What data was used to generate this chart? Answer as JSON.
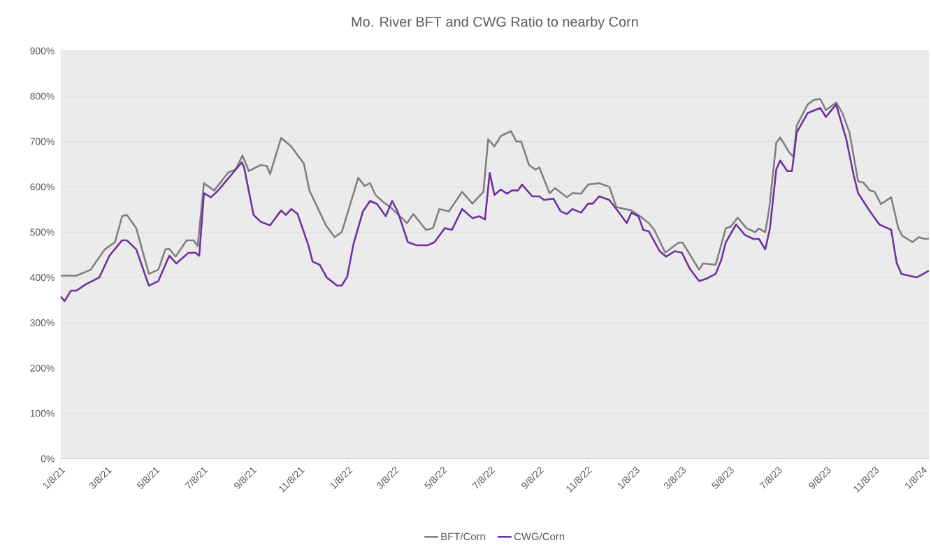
{
  "chart_data": {
    "type": "line",
    "title": "Mo. River BFT and CWG Ratio to nearby Corn",
    "xlim": [
      "2021-01-08",
      "2024-01-16"
    ],
    "ylim": [
      0,
      900
    ],
    "xticks": [
      {
        "value": "2021-01-08",
        "label": "1/8/21"
      },
      {
        "value": "2021-03-08",
        "label": "3/8/21"
      },
      {
        "value": "2021-05-08",
        "label": "5/8/21"
      },
      {
        "value": "2021-07-08",
        "label": "7/8/21"
      },
      {
        "value": "2021-09-08",
        "label": "9/8/21"
      },
      {
        "value": "2021-11-08",
        "label": "11/8/21"
      },
      {
        "value": "2022-01-08",
        "label": "1/8/22"
      },
      {
        "value": "2022-03-08",
        "label": "3/8/22"
      },
      {
        "value": "2022-05-08",
        "label": "5/8/22"
      },
      {
        "value": "2022-07-08",
        "label": "7/8/22"
      },
      {
        "value": "2022-09-08",
        "label": "9/8/22"
      },
      {
        "value": "2022-11-08",
        "label": "11/8/22"
      },
      {
        "value": "2023-01-08",
        "label": "1/8/23"
      },
      {
        "value": "2023-03-08",
        "label": "3/8/23"
      },
      {
        "value": "2023-05-08",
        "label": "5/8/23"
      },
      {
        "value": "2023-07-08",
        "label": "7/8/23"
      },
      {
        "value": "2023-09-08",
        "label": "9/8/23"
      },
      {
        "value": "2023-11-08",
        "label": "11/8/23"
      },
      {
        "value": "2024-01-08",
        "label": "1/8/24"
      }
    ],
    "yticks": [
      {
        "value": 0,
        "label": "0%"
      },
      {
        "value": 100,
        "label": "100%"
      },
      {
        "value": 200,
        "label": "200%"
      },
      {
        "value": 300,
        "label": "300%"
      },
      {
        "value": 400,
        "label": "400%"
      },
      {
        "value": 500,
        "label": "500%"
      },
      {
        "value": 600,
        "label": "600%"
      },
      {
        "value": 700,
        "label": "700%"
      },
      {
        "value": 800,
        "label": "800%"
      },
      {
        "value": 900,
        "label": "900%"
      }
    ],
    "grid": "y",
    "legend": "bottom",
    "series": [
      {
        "name": "BFT/Corn",
        "color": "#808080",
        "x": [
          "2021-01-08",
          "2021-01-28",
          "2021-02-15",
          "2021-03-05",
          "2021-03-18",
          "2021-03-27",
          "2021-04-02",
          "2021-04-14",
          "2021-04-30",
          "2021-05-12",
          "2021-05-21",
          "2021-05-26",
          "2021-06-03",
          "2021-06-17",
          "2021-06-26",
          "2021-07-01",
          "2021-07-09",
          "2021-07-22",
          "2021-08-09",
          "2021-08-18",
          "2021-08-27",
          "2021-09-04",
          "2021-09-19",
          "2021-09-27",
          "2021-10-01",
          "2021-10-15",
          "2021-10-28",
          "2021-11-13",
          "2021-11-20",
          "2021-12-11",
          "2021-12-22",
          "2021-12-31",
          "2022-01-21",
          "2022-01-29",
          "2022-02-05",
          "2022-02-12",
          "2022-02-22",
          "2022-03-03",
          "2022-03-15",
          "2022-03-24",
          "2022-04-01",
          "2022-04-17",
          "2022-04-26",
          "2022-05-04",
          "2022-05-16",
          "2022-06-02",
          "2022-06-15",
          "2022-06-29",
          "2022-07-05",
          "2022-07-13",
          "2022-07-21",
          "2022-08-03",
          "2022-08-10",
          "2022-08-16",
          "2022-08-26",
          "2022-09-03",
          "2022-09-08",
          "2022-09-21",
          "2022-09-28",
          "2022-10-13",
          "2022-10-20",
          "2022-10-31",
          "2022-11-09",
          "2022-11-23",
          "2022-12-06",
          "2022-12-15",
          "2023-01-03",
          "2023-01-14",
          "2023-01-25",
          "2023-02-01",
          "2023-02-15",
          "2023-03-04",
          "2023-03-09",
          "2023-03-21",
          "2023-03-30",
          "2023-04-04",
          "2023-04-20",
          "2023-05-03",
          "2023-05-09",
          "2023-05-18",
          "2023-05-29",
          "2023-06-09",
          "2023-06-14",
          "2023-06-22",
          "2023-06-27",
          "2023-07-06",
          "2023-07-11",
          "2023-07-22",
          "2023-07-28",
          "2023-08-01",
          "2023-08-15",
          "2023-08-23",
          "2023-08-31",
          "2023-09-07",
          "2023-09-20",
          "2023-09-28",
          "2023-10-07",
          "2023-10-18",
          "2023-10-25",
          "2023-11-02",
          "2023-11-08",
          "2023-11-16",
          "2023-11-29",
          "2023-12-08",
          "2023-12-13",
          "2023-12-26",
          "2024-01-03",
          "2024-01-11",
          "2024-01-16"
        ],
        "values": [
          404,
          404,
          417,
          462,
          478,
          535,
          538,
          509,
          408,
          417,
          462,
          463,
          446,
          482,
          482,
          469,
          608,
          592,
          632,
          638,
          669,
          635,
          648,
          646,
          628,
          708,
          689,
          651,
          592,
          515,
          489,
          500,
          620,
          602,
          608,
          582,
          566,
          555,
          535,
          520,
          540,
          505,
          509,
          551,
          546,
          589,
          563,
          589,
          705,
          689,
          712,
          723,
          700,
          700,
          648,
          638,
          643,
          586,
          597,
          577,
          586,
          585,
          605,
          608,
          600,
          555,
          548,
          535,
          520,
          505,
          455,
          477,
          477,
          443,
          417,
          431,
          428,
          509,
          512,
          532,
          509,
          500,
          508,
          500,
          551,
          697,
          709,
          677,
          666,
          735,
          782,
          792,
          794,
          769,
          786,
          763,
          720,
          612,
          609,
          592,
          589,
          562,
          577,
          509,
          492,
          478,
          489,
          485,
          486
        ]
      },
      {
        "name": "CWG/Corn",
        "color": "#7030a0",
        "x": [
          "2021-01-08",
          "2021-01-13",
          "2021-01-21",
          "2021-01-28",
          "2021-02-09",
          "2021-02-26",
          "2021-03-11",
          "2021-03-27",
          "2021-04-02",
          "2021-04-14",
          "2021-04-30",
          "2021-05-12",
          "2021-05-26",
          "2021-06-04",
          "2021-06-19",
          "2021-06-28",
          "2021-07-03",
          "2021-07-09",
          "2021-07-18",
          "2021-07-27",
          "2021-08-26",
          "2021-08-29",
          "2021-09-10",
          "2021-09-19",
          "2021-10-01",
          "2021-10-15",
          "2021-10-21",
          "2021-10-28",
          "2021-11-05",
          "2021-11-19",
          "2021-11-24",
          "2021-12-03",
          "2021-12-12",
          "2021-12-25",
          "2021-12-31",
          "2022-01-07",
          "2022-01-15",
          "2022-01-27",
          "2022-02-05",
          "2022-02-14",
          "2022-02-25",
          "2022-03-05",
          "2022-03-12",
          "2022-03-25",
          "2022-04-05",
          "2022-04-19",
          "2022-04-28",
          "2022-05-11",
          "2022-05-20",
          "2022-06-02",
          "2022-06-15",
          "2022-06-24",
          "2022-07-01",
          "2022-07-07",
          "2022-07-13",
          "2022-07-21",
          "2022-07-29",
          "2022-08-04",
          "2022-08-12",
          "2022-08-17",
          "2022-08-30",
          "2022-09-08",
          "2022-09-14",
          "2022-09-26",
          "2022-10-05",
          "2022-10-13",
          "2022-10-20",
          "2022-10-31",
          "2022-11-09",
          "2022-11-15",
          "2022-11-23",
          "2022-12-06",
          "2022-12-15",
          "2022-12-28",
          "2023-01-03",
          "2023-01-12",
          "2023-01-18",
          "2023-01-25",
          "2023-02-08",
          "2023-02-16",
          "2023-02-27",
          "2023-03-08",
          "2023-03-18",
          "2023-03-30",
          "2023-04-08",
          "2023-04-20",
          "2023-04-27",
          "2023-05-03",
          "2023-05-16",
          "2023-05-27",
          "2023-06-07",
          "2023-06-14",
          "2023-06-22",
          "2023-06-28",
          "2023-07-06",
          "2023-07-11",
          "2023-07-20",
          "2023-07-26",
          "2023-08-01",
          "2023-08-15",
          "2023-08-31",
          "2023-09-07",
          "2023-09-20",
          "2023-10-03",
          "2023-10-12",
          "2023-10-18",
          "2023-11-02",
          "2023-11-14",
          "2023-11-29",
          "2023-12-06",
          "2023-12-12",
          "2023-12-31",
          "2024-01-09",
          "2024-01-16"
        ],
        "values": [
          358,
          348,
          371,
          371,
          385,
          400,
          448,
          482,
          482,
          462,
          382,
          392,
          448,
          431,
          454,
          455,
          448,
          586,
          577,
          592,
          654,
          643,
          538,
          523,
          515,
          548,
          538,
          551,
          540,
          469,
          435,
          428,
          400,
          382,
          382,
          402,
          474,
          546,
          569,
          562,
          535,
          569,
          546,
          478,
          471,
          471,
          478,
          509,
          505,
          551,
          531,
          535,
          528,
          631,
          582,
          594,
          585,
          592,
          592,
          605,
          579,
          579,
          571,
          574,
          546,
          540,
          551,
          543,
          563,
          563,
          579,
          571,
          551,
          520,
          543,
          535,
          505,
          502,
          458,
          446,
          458,
          455,
          420,
          392,
          397,
          408,
          438,
          478,
          517,
          494,
          485,
          485,
          462,
          509,
          638,
          658,
          635,
          635,
          720,
          763,
          774,
          754,
          782,
          705,
          628,
          586,
          546,
          517,
          505,
          432,
          408,
          400,
          408,
          415
        ]
      }
    ]
  }
}
